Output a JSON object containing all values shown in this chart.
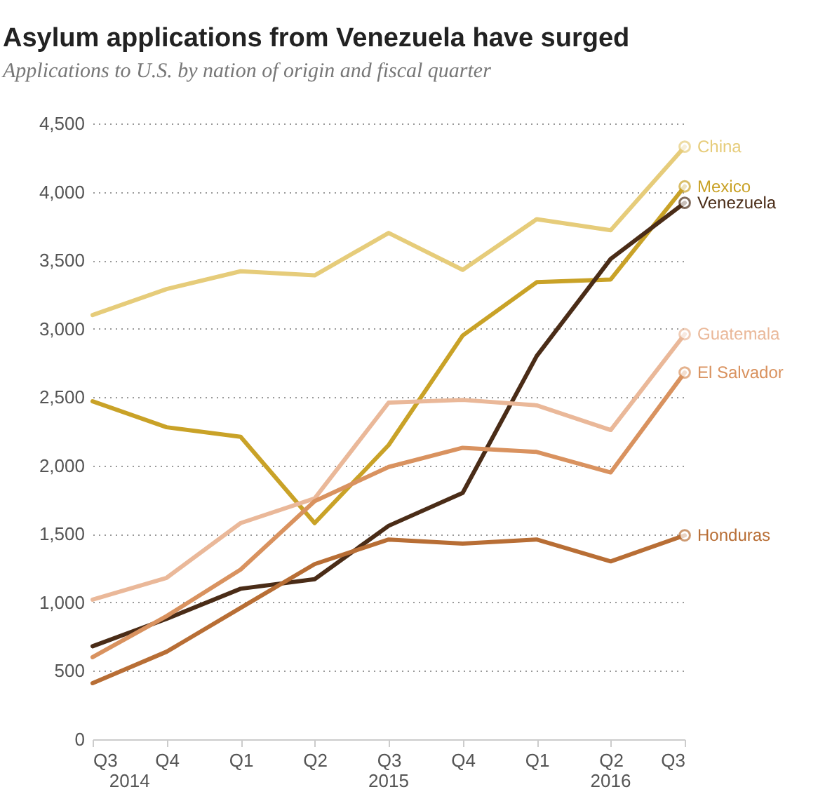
{
  "chart_data": {
    "type": "line",
    "title": "Asylum applications from Venezuela have surged",
    "subtitle": "Applications to U.S. by nation of origin and fiscal quarter",
    "categories": [
      "Q3",
      "Q4",
      "Q1",
      "Q2",
      "Q3",
      "Q4",
      "Q1",
      "Q2",
      "Q3"
    ],
    "annotations": [
      "2014",
      "2015",
      "2016"
    ],
    "series": [
      {
        "name": "China",
        "color": "#e6cc7a",
        "values": [
          3100,
          3290,
          3420,
          3390,
          3700,
          3430,
          3800,
          3720,
          4330
        ]
      },
      {
        "name": "Mexico",
        "color": "#c9a227",
        "values": [
          2470,
          2280,
          2210,
          1580,
          2150,
          2950,
          3340,
          3360,
          4040
        ]
      },
      {
        "name": "Venezuela",
        "color": "#4a2c17",
        "values": [
          680,
          880,
          1100,
          1170,
          1560,
          1800,
          2800,
          3510,
          3920
        ]
      },
      {
        "name": "Guatemala",
        "color": "#eab899",
        "values": [
          1020,
          1180,
          1580,
          1760,
          2460,
          2480,
          2440,
          2260,
          2960
        ]
      },
      {
        "name": "El Salvador",
        "color": "#d9925f",
        "values": [
          600,
          900,
          1240,
          1740,
          1990,
          2130,
          2100,
          1950,
          2680
        ]
      },
      {
        "name": "Honduras",
        "color": "#b86e35",
        "values": [
          410,
          640,
          960,
          1280,
          1460,
          1430,
          1460,
          1300,
          1490
        ]
      }
    ],
    "ylim": [
      0,
      4500
    ],
    "yticks": [
      0,
      500,
      {
        "value": 1000,
        "label": "1,000"
      },
      {
        "value": 1500,
        "label": "1,500"
      },
      {
        "value": 2000,
        "label": "2,000"
      },
      {
        "value": 2500,
        "label": "2,500"
      },
      {
        "value": 3000,
        "label": "3,000"
      },
      {
        "value": 3500,
        "label": "3,500"
      },
      {
        "value": 4000,
        "label": "4,000"
      },
      {
        "value": 4500,
        "label": "4,500"
      }
    ],
    "grid": "y",
    "line_style": "solid"
  }
}
